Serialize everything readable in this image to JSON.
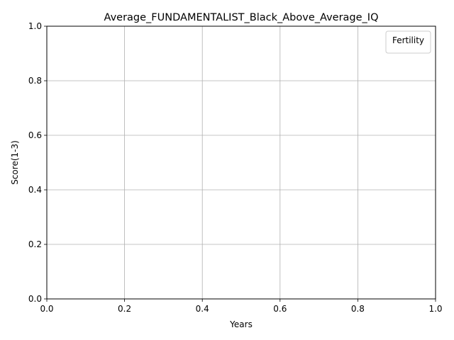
{
  "chart_data": {
    "type": "line",
    "title": "Average_FUNDAMENTALIST_Black_Above_Average_IQ",
    "xlabel": "Years",
    "ylabel": "Score(1-3)",
    "xlim": [
      0.0,
      1.0
    ],
    "ylim": [
      0.0,
      1.0
    ],
    "xticks": [
      "0.0",
      "0.2",
      "0.4",
      "0.6",
      "0.8",
      "1.0"
    ],
    "yticks": [
      "0.0",
      "0.2",
      "0.4",
      "0.6",
      "0.8",
      "1.0"
    ],
    "grid": true,
    "legend": {
      "title": "Fertility",
      "placement": "top-right",
      "entries": []
    },
    "series": []
  }
}
